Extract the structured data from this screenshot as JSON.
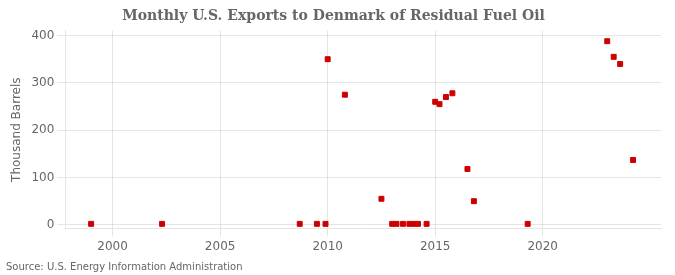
{
  "chart_data": {
    "type": "scatter",
    "title": "Monthly U.S. Exports to Denmark of Residual Fuel Oil",
    "ylabel": "Thousand Barrels",
    "source": "Source: U.S. Energy Information Administration",
    "x": [
      1999.0,
      2002.3,
      2008.7,
      2009.5,
      2009.9,
      2010.0,
      2010.8,
      2012.5,
      2013.0,
      2013.2,
      2013.5,
      2013.8,
      2014.0,
      2014.2,
      2014.6,
      2015.0,
      2015.2,
      2015.5,
      2015.8,
      2016.5,
      2016.8,
      2019.3,
      2023.0,
      2023.3,
      2023.6,
      2024.2
    ],
    "values": [
      2,
      2,
      2,
      2,
      2,
      350,
      275,
      55,
      2,
      2,
      2,
      2,
      2,
      2,
      2,
      260,
      255,
      270,
      278,
      118,
      50,
      2,
      388,
      355,
      340,
      137
    ],
    "color": "#cc0000",
    "marker": "square",
    "xlim": [
      1997.8,
      2025.5
    ],
    "xticks": [
      2000,
      2005,
      2010,
      2015,
      2020
    ],
    "ylim": [
      -8,
      410
    ],
    "yticks": [
      0,
      100,
      200,
      300,
      400
    ],
    "grid": true
  }
}
